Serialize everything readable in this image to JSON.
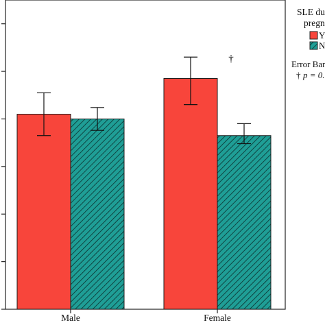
{
  "chart_data": {
    "type": "bar",
    "categories": [
      "Male",
      "Female"
    ],
    "series": [
      {
        "name": "Y",
        "color": "#f8453b",
        "pattern": "solid",
        "values": [
          4.1,
          4.85
        ],
        "error_low": [
          3.65,
          4.3
        ],
        "error_high": [
          4.55,
          5.3
        ]
      },
      {
        "name": "N",
        "color": "#1f9e96",
        "pattern": "diagonal-hatch",
        "values": [
          4.0,
          3.65
        ],
        "error_low": [
          3.76,
          3.48
        ],
        "error_high": [
          4.24,
          3.9
        ]
      }
    ],
    "ylim": [
      0,
      6.5
    ],
    "yticks": [
      0,
      1,
      2,
      3,
      4,
      5,
      6
    ],
    "ytick_labels_visible": false,
    "grid": false,
    "legend": {
      "placement": "right",
      "title_line1": "SLE du",
      "title_line2": "pregna",
      "error_bars_note": "Error Bars",
      "significance_note": "p = 0."
    },
    "annotations": [
      {
        "text": "†",
        "category": "Female"
      }
    ]
  }
}
